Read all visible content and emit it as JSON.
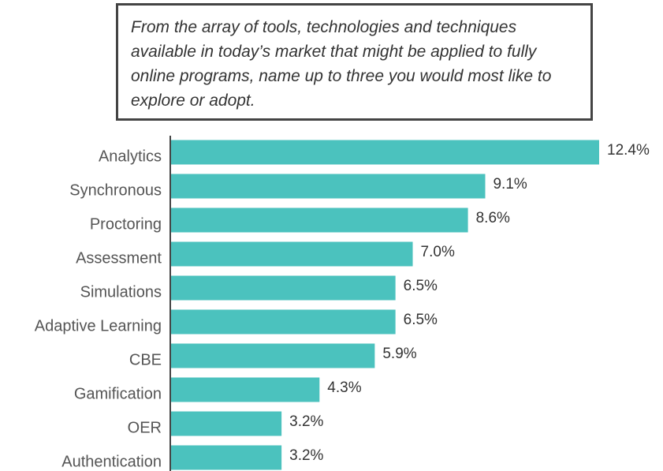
{
  "chart_data": {
    "type": "bar",
    "orientation": "horizontal",
    "title": "From the array of tools, technologies and techniques available in today’s market that might be applied to fully online programs, name up to three you would most like to explore or adopt.",
    "categories": [
      "Analytics",
      "Synchronous",
      "Proctoring",
      "Assessment",
      "Simulations",
      "Adaptive Learning",
      "CBE",
      "Gamification",
      "OER",
      "Authentication"
    ],
    "values": [
      12.4,
      9.1,
      8.6,
      7.0,
      6.5,
      6.5,
      5.9,
      4.3,
      3.2,
      3.2
    ],
    "value_labels": [
      "12.4%",
      "9.1%",
      "8.6%",
      "7.0%",
      "6.5%",
      "6.5%",
      "5.9%",
      "4.3%",
      "3.2%",
      "3.2%"
    ],
    "color": "#4bc2be"
  }
}
